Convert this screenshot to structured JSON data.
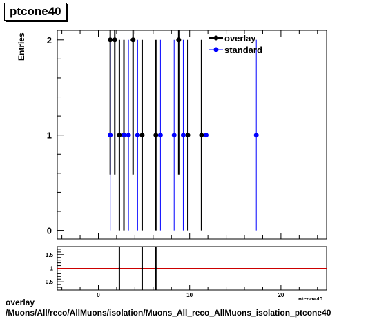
{
  "title_box": "ptcone40",
  "footer": {
    "line1": "overlay",
    "line2": "/Muons/All/reco/AllMuons/isolation/Muons_All_reco_AllMuons_isolation_ptcone40"
  },
  "colors": {
    "overlay": "#000000",
    "standard": "#0000ff",
    "ratio_line": "#cc0000"
  },
  "chart_data": [
    {
      "type": "scatter",
      "title": "ptcone40",
      "ylabel": "Entries",
      "xlabel": "ptcone40",
      "xlim": [
        -4.5,
        25
      ],
      "ylim": [
        -0.09,
        2.1
      ],
      "y_ticks": [
        0,
        1,
        2
      ],
      "legend": {
        "position": "top-right",
        "entries": [
          "overlay",
          "standard"
        ]
      },
      "series": [
        {
          "name": "overlay",
          "color": "#000000",
          "x": [
            1.3,
            1.8,
            2.3,
            2.8,
            3.8,
            4.8,
            6.3,
            8.8,
            9.8,
            11.3
          ],
          "y": [
            2,
            2,
            1,
            1,
            2,
            1,
            1,
            2,
            1,
            1
          ]
        },
        {
          "name": "standard",
          "color": "#0000ff",
          "x": [
            1.3,
            2.8,
            3.3,
            4.3,
            6.8,
            8.3,
            9.3,
            11.8,
            17.3
          ],
          "y": [
            1,
            1,
            1,
            1,
            1,
            1,
            1,
            1,
            1
          ]
        }
      ]
    },
    {
      "type": "scatter",
      "xlim": [
        -4.5,
        25
      ],
      "ylim": [
        0.2,
        1.8
      ],
      "x_ticks": [
        0,
        10,
        20
      ],
      "y_ticks": [
        0.5,
        1,
        1.5
      ],
      "reference_line": 1,
      "ratio_points": {
        "x": [
          2.3,
          4.8,
          6.3
        ],
        "y": [
          1,
          1,
          1
        ]
      }
    }
  ]
}
